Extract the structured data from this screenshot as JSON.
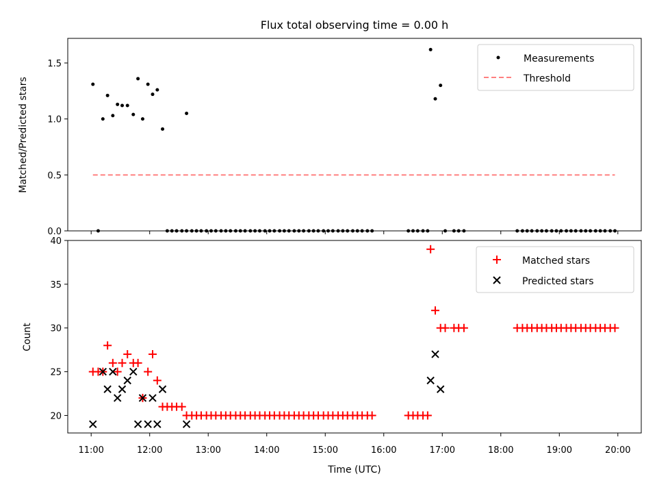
{
  "figure": {
    "title": "Flux total observing time = 0.00 h"
  },
  "chart_data": [
    {
      "type": "scatter",
      "ylabel": "Matched/Predicted stars",
      "xlabel": "",
      "xlim_hours": [
        10.6,
        20.4
      ],
      "ylim": [
        0,
        1.72
      ],
      "yticks": [
        0.0,
        0.5,
        1.0,
        1.5
      ],
      "ytick_labels": [
        "0.0",
        "0.5",
        "1.0",
        "1.5"
      ],
      "legend": "top-right",
      "series": [
        {
          "name": "Measurements",
          "marker": "dot",
          "color": "#000000",
          "points": [
            [
              11.03,
              1.31
            ],
            [
              11.12,
              0.0
            ],
            [
              11.2,
              1.0
            ],
            [
              11.28,
              1.21
            ],
            [
              11.37,
              1.03
            ],
            [
              11.45,
              1.13
            ],
            [
              11.53,
              1.12
            ],
            [
              11.62,
              1.12
            ],
            [
              11.72,
              1.04
            ],
            [
              11.8,
              1.36
            ],
            [
              11.88,
              1.0
            ],
            [
              11.97,
              1.31
            ],
            [
              12.05,
              1.22
            ],
            [
              12.13,
              1.26
            ],
            [
              12.22,
              0.91
            ],
            [
              12.63,
              1.05
            ],
            [
              16.8,
              1.62
            ],
            [
              16.88,
              1.18
            ],
            [
              16.97,
              1.3
            ]
          ],
          "zeros": [
            12.3,
            12.38,
            12.46,
            12.55,
            12.63,
            12.72,
            12.8,
            12.88,
            12.97,
            13.05,
            13.13,
            13.22,
            13.3,
            13.38,
            13.47,
            13.55,
            13.63,
            13.72,
            13.8,
            13.88,
            13.97,
            14.05,
            14.13,
            14.22,
            14.3,
            14.38,
            14.47,
            14.55,
            14.63,
            14.72,
            14.8,
            14.88,
            14.97,
            15.05,
            15.13,
            15.22,
            15.3,
            15.38,
            15.47,
            15.55,
            15.63,
            15.72,
            15.8,
            16.42,
            16.5,
            16.58,
            16.67,
            16.75,
            17.05,
            17.2,
            17.28,
            17.37,
            18.28,
            18.37,
            18.45,
            18.53,
            18.62,
            18.7,
            18.78,
            18.87,
            18.95,
            19.03,
            19.12,
            19.2,
            19.28,
            19.37,
            19.45,
            19.53,
            19.62,
            19.7,
            19.78,
            19.87,
            19.95
          ]
        },
        {
          "name": "Threshold",
          "type": "line",
          "style": "dashed",
          "color": "#ff7f7f",
          "x": [
            11.03,
            19.95
          ],
          "y": [
            0.5,
            0.5
          ]
        }
      ]
    },
    {
      "type": "scatter",
      "ylabel": "Count",
      "xlabel": "Time (UTC)",
      "xlim_hours": [
        10.6,
        20.4
      ],
      "ylim": [
        18,
        40
      ],
      "yticks": [
        20,
        25,
        30,
        35,
        40
      ],
      "ytick_labels": [
        "20",
        "25",
        "30",
        "35",
        "40"
      ],
      "xticks_hours": [
        11,
        12,
        13,
        14,
        15,
        16,
        17,
        18,
        19,
        20
      ],
      "xtick_labels": [
        "11:00",
        "12:00",
        "13:00",
        "14:00",
        "15:00",
        "16:00",
        "17:00",
        "18:00",
        "19:00",
        "20:00"
      ],
      "legend": "top-right",
      "series": [
        {
          "name": "Matched stars",
          "marker": "plus",
          "color": "#ff0000",
          "points": [
            [
              11.03,
              25
            ],
            [
              11.12,
              25
            ],
            [
              11.2,
              25
            ],
            [
              11.28,
              28
            ],
            [
              11.37,
              26
            ],
            [
              11.45,
              25
            ],
            [
              11.53,
              26
            ],
            [
              11.62,
              27
            ],
            [
              11.72,
              26
            ],
            [
              11.8,
              26
            ],
            [
              11.88,
              22
            ],
            [
              11.97,
              25
            ],
            [
              12.05,
              27
            ],
            [
              12.13,
              24
            ],
            [
              12.22,
              21
            ],
            [
              12.3,
              21
            ],
            [
              12.38,
              21
            ],
            [
              12.46,
              21
            ],
            [
              12.55,
              21
            ],
            [
              12.63,
              20
            ],
            [
              12.72,
              20
            ],
            [
              12.8,
              20
            ],
            [
              12.88,
              20
            ],
            [
              12.97,
              20
            ],
            [
              13.05,
              20
            ],
            [
              13.13,
              20
            ],
            [
              13.22,
              20
            ],
            [
              13.3,
              20
            ],
            [
              13.38,
              20
            ],
            [
              13.47,
              20
            ],
            [
              13.55,
              20
            ],
            [
              13.63,
              20
            ],
            [
              13.72,
              20
            ],
            [
              13.8,
              20
            ],
            [
              13.88,
              20
            ],
            [
              13.97,
              20
            ],
            [
              14.05,
              20
            ],
            [
              14.13,
              20
            ],
            [
              14.22,
              20
            ],
            [
              14.3,
              20
            ],
            [
              14.38,
              20
            ],
            [
              14.47,
              20
            ],
            [
              14.55,
              20
            ],
            [
              14.63,
              20
            ],
            [
              14.72,
              20
            ],
            [
              14.8,
              20
            ],
            [
              14.88,
              20
            ],
            [
              14.97,
              20
            ],
            [
              15.05,
              20
            ],
            [
              15.13,
              20
            ],
            [
              15.22,
              20
            ],
            [
              15.3,
              20
            ],
            [
              15.38,
              20
            ],
            [
              15.47,
              20
            ],
            [
              15.55,
              20
            ],
            [
              15.63,
              20
            ],
            [
              15.72,
              20
            ],
            [
              15.8,
              20
            ],
            [
              16.42,
              20
            ],
            [
              16.5,
              20
            ],
            [
              16.58,
              20
            ],
            [
              16.67,
              20
            ],
            [
              16.75,
              20
            ],
            [
              16.8,
              39
            ],
            [
              16.88,
              32
            ],
            [
              16.97,
              30
            ],
            [
              17.05,
              30
            ],
            [
              17.2,
              30
            ],
            [
              17.28,
              30
            ],
            [
              17.37,
              30
            ],
            [
              18.28,
              30
            ],
            [
              18.37,
              30
            ],
            [
              18.45,
              30
            ],
            [
              18.53,
              30
            ],
            [
              18.62,
              30
            ],
            [
              18.7,
              30
            ],
            [
              18.78,
              30
            ],
            [
              18.87,
              30
            ],
            [
              18.95,
              30
            ],
            [
              19.03,
              30
            ],
            [
              19.12,
              30
            ],
            [
              19.2,
              30
            ],
            [
              19.28,
              30
            ],
            [
              19.37,
              30
            ],
            [
              19.45,
              30
            ],
            [
              19.53,
              30
            ],
            [
              19.62,
              30
            ],
            [
              19.7,
              30
            ],
            [
              19.78,
              30
            ],
            [
              19.87,
              30
            ],
            [
              19.95,
              30
            ]
          ]
        },
        {
          "name": "Predicted stars",
          "marker": "x",
          "color": "#000000",
          "points": [
            [
              11.03,
              19
            ],
            [
              11.2,
              25
            ],
            [
              11.28,
              23
            ],
            [
              11.37,
              25
            ],
            [
              11.45,
              22
            ],
            [
              11.53,
              23
            ],
            [
              11.62,
              24
            ],
            [
              11.72,
              25
            ],
            [
              11.8,
              19
            ],
            [
              11.88,
              22
            ],
            [
              11.97,
              19
            ],
            [
              12.05,
              22
            ],
            [
              12.13,
              19
            ],
            [
              12.22,
              23
            ],
            [
              12.63,
              19
            ],
            [
              16.8,
              24
            ],
            [
              16.88,
              27
            ],
            [
              16.97,
              23
            ]
          ]
        }
      ]
    }
  ]
}
